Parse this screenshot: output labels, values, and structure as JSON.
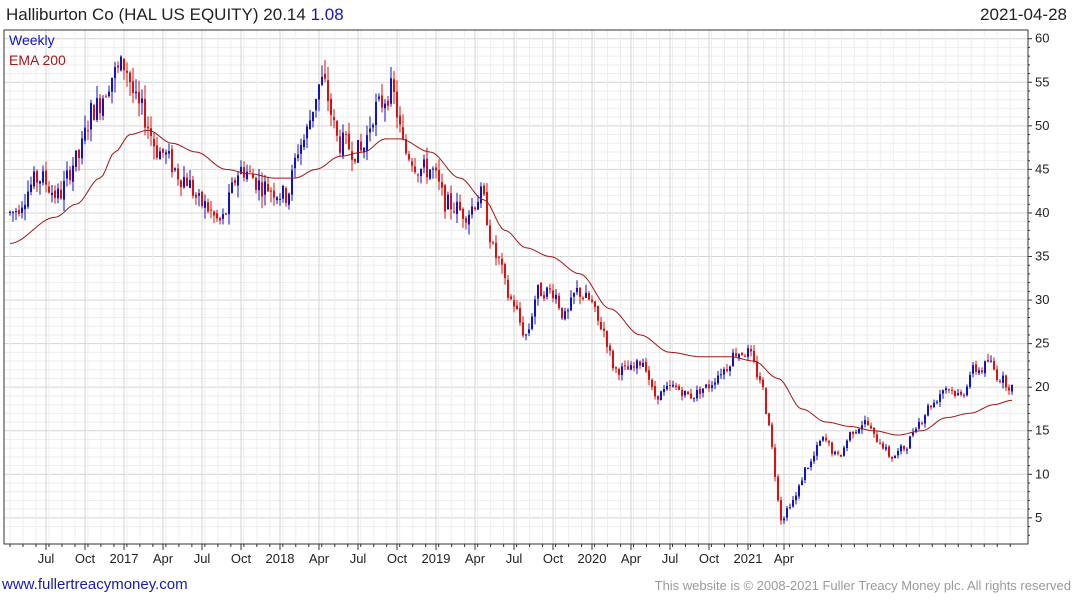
{
  "header": {
    "title": "Halliburton Co (HAL US EQUITY)",
    "last": "20.14",
    "change": "1.08",
    "date": "2021-04-28"
  },
  "footer": {
    "site": "www.fullertreacymoney.com",
    "copyright": "This website is © 2008-2021 Fuller Treacy Money plc. All rights reserved"
  },
  "colors": {
    "up": "#1212c8",
    "down": "#e01010",
    "ema": "#a01818",
    "grid": "#dcdcdc"
  },
  "chart_data": {
    "type": "line",
    "subtype": "candlestick",
    "frequency": "Weekly",
    "legend": [
      "Weekly",
      "EMA 200"
    ],
    "legend_position": "top-left",
    "x_tick_labels": [
      "Jul",
      "Oct",
      "2017",
      "Apr",
      "Jul",
      "Oct",
      "2018",
      "Apr",
      "Jul",
      "Oct",
      "2019",
      "Apr",
      "Jul",
      "Oct",
      "2020",
      "Apr",
      "Jul",
      "Oct",
      "2021",
      "Apr"
    ],
    "y_ticks": [
      5,
      10,
      15,
      20,
      25,
      30,
      35,
      40,
      45,
      50,
      55,
      60
    ],
    "ylim": [
      2,
      61
    ],
    "y_axis_side": "right",
    "grid": true,
    "price_path": {
      "start_week": "2016-04-01",
      "anchors": [
        [
          0,
          40
        ],
        [
          10,
          44
        ],
        [
          16,
          42
        ],
        [
          22,
          46
        ],
        [
          28,
          52
        ],
        [
          35,
          56
        ],
        [
          38,
          57
        ],
        [
          43,
          52
        ],
        [
          50,
          47
        ],
        [
          58,
          44
        ],
        [
          64,
          41
        ],
        [
          70,
          39
        ],
        [
          77,
          45
        ],
        [
          85,
          43
        ],
        [
          92,
          42
        ],
        [
          97,
          48
        ],
        [
          104,
          55
        ],
        [
          110,
          48
        ],
        [
          117,
          47
        ],
        [
          122,
          52
        ],
        [
          127,
          54
        ],
        [
          132,
          47
        ],
        [
          137,
          45
        ],
        [
          140,
          45
        ],
        [
          146,
          41
        ],
        [
          152,
          40
        ],
        [
          157,
          42
        ],
        [
          162,
          35
        ],
        [
          167,
          30
        ],
        [
          172,
          26
        ],
        [
          176,
          31
        ],
        [
          181,
          31
        ],
        [
          185,
          28
        ],
        [
          189,
          31
        ],
        [
          193,
          30
        ],
        [
          197,
          27
        ],
        [
          202,
          22
        ],
        [
          207,
          22
        ],
        [
          211,
          23
        ],
        [
          215,
          19
        ],
        [
          221,
          20
        ],
        [
          227,
          19
        ],
        [
          232,
          20
        ],
        [
          238,
          22
        ],
        [
          242,
          24
        ],
        [
          246,
          24
        ],
        [
          250,
          21
        ],
        [
          253,
          16
        ],
        [
          255,
          10
        ],
        [
          257,
          5
        ],
        [
          261,
          7
        ],
        [
          266,
          11
        ],
        [
          271,
          14
        ],
        [
          276,
          12
        ],
        [
          281,
          15
        ],
        [
          285,
          16
        ],
        [
          289,
          14
        ],
        [
          294,
          12
        ],
        [
          298,
          13
        ],
        [
          303,
          16
        ],
        [
          307,
          18
        ],
        [
          312,
          20
        ],
        [
          317,
          19
        ],
        [
          321,
          22
        ],
        [
          324,
          22
        ],
        [
          326,
          23
        ],
        [
          330,
          21
        ],
        [
          334,
          20
        ]
      ],
      "weeks": 335
    },
    "ema200_path": {
      "anchors": [
        [
          0,
          36.5
        ],
        [
          15,
          39.5
        ],
        [
          22,
          41
        ],
        [
          30,
          44
        ],
        [
          35,
          47
        ],
        [
          40,
          49
        ],
        [
          46,
          49.5
        ],
        [
          54,
          48
        ],
        [
          62,
          47
        ],
        [
          72,
          45
        ],
        [
          80,
          44.5
        ],
        [
          88,
          44
        ],
        [
          95,
          44
        ],
        [
          102,
          45
        ],
        [
          110,
          46.5
        ],
        [
          118,
          47
        ],
        [
          125,
          48.5
        ],
        [
          130,
          48.5
        ],
        [
          140,
          47
        ],
        [
          150,
          44
        ],
        [
          158,
          41.5
        ],
        [
          165,
          38
        ],
        [
          172,
          36
        ],
        [
          180,
          35
        ],
        [
          190,
          33
        ],
        [
          200,
          29
        ],
        [
          210,
          26
        ],
        [
          220,
          24
        ],
        [
          230,
          23.5
        ],
        [
          240,
          23.5
        ],
        [
          248,
          23
        ],
        [
          256,
          21
        ],
        [
          264,
          17.5
        ],
        [
          272,
          16
        ],
        [
          280,
          15.5
        ],
        [
          288,
          15
        ],
        [
          296,
          14.5
        ],
        [
          304,
          15
        ],
        [
          312,
          16.5
        ],
        [
          320,
          17
        ],
        [
          328,
          18
        ],
        [
          334,
          18.5
        ]
      ]
    }
  }
}
